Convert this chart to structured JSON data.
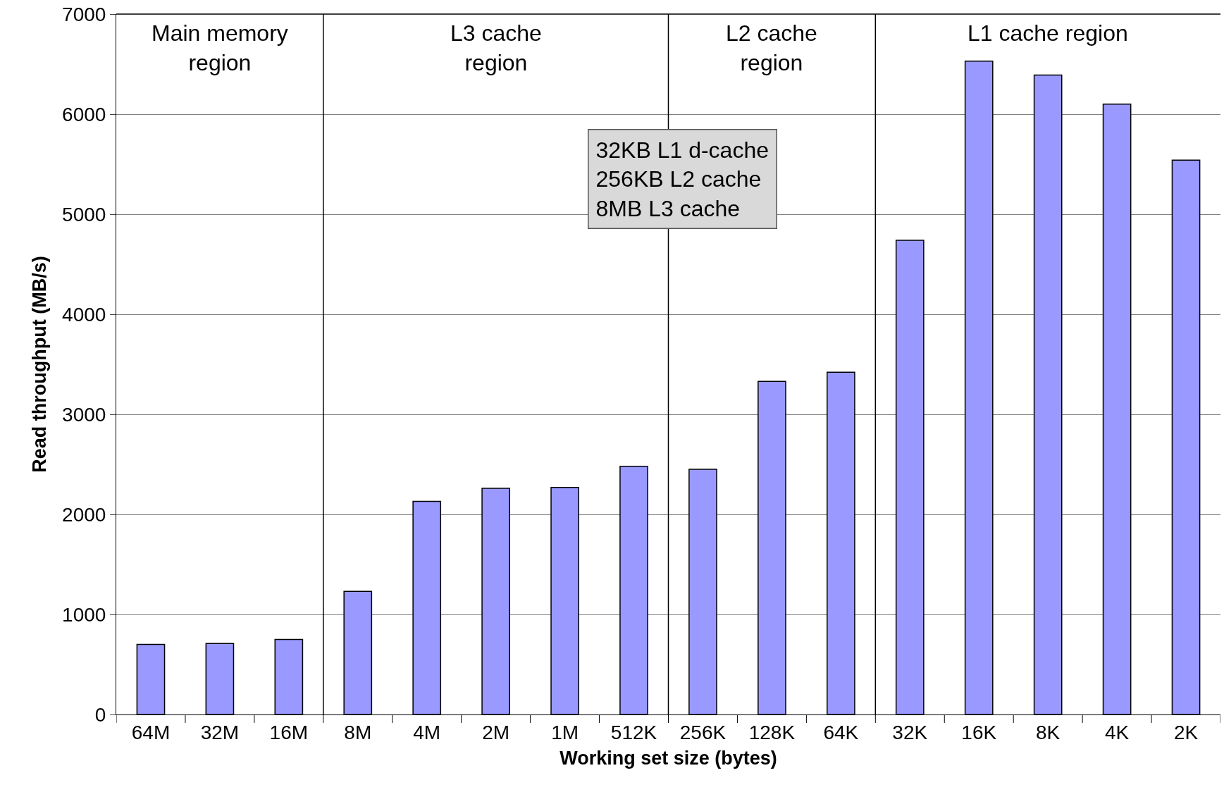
{
  "chart_data": {
    "type": "bar",
    "xlabel": "Working set size (bytes)",
    "ylabel": "Read throughput (MB/s)",
    "categories": [
      "64M",
      "32M",
      "16M",
      "8M",
      "4M",
      "2M",
      "1M",
      "512K",
      "256K",
      "128K",
      "64K",
      "32K",
      "16K",
      "8K",
      "4K",
      "2K"
    ],
    "values": [
      700,
      710,
      750,
      1230,
      2130,
      2260,
      2270,
      2480,
      2450,
      3330,
      3420,
      4740,
      6530,
      6390,
      6100,
      5540
    ],
    "color": "#9999ff",
    "ylim": [
      0,
      7000
    ],
    "yticks": [
      0,
      1000,
      2000,
      3000,
      4000,
      5000,
      6000,
      7000
    ],
    "grid": "y",
    "annotations": [
      "Main memory\nregion",
      "L3 cache\nregion",
      "L2 cache\nregion",
      "L1 cache region",
      "32KB L1 d-cache\n256KB L2 cache\n8MB L3 cache"
    ]
  }
}
